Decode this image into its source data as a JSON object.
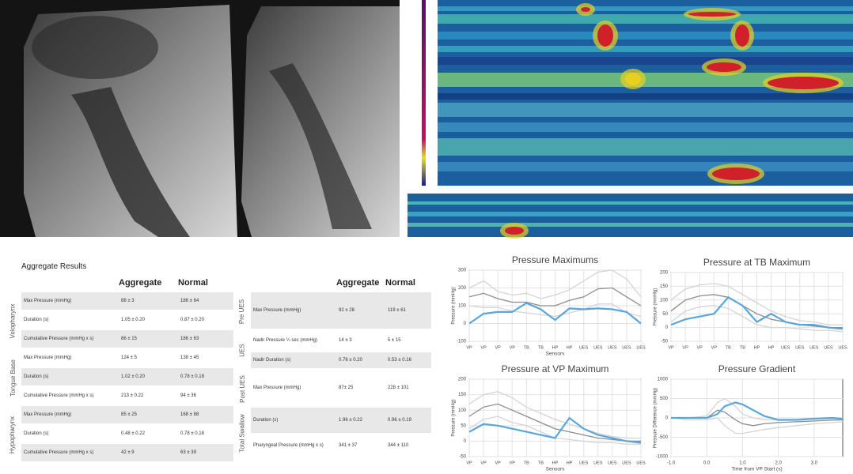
{
  "table": {
    "title": "Aggregate Results",
    "left_header": [
      "Aggregate",
      "Normal"
    ],
    "right_header": [
      "Aggregate",
      "Normal"
    ],
    "left": [
      {
        "group": "Velopharynx",
        "rows": [
          [
            "Max Pressure (mmHg)",
            "88 ± 3",
            "186 ± 64"
          ],
          [
            "Duration (s)",
            "1.05 ± 0.20",
            "0.87 ± 0.20"
          ],
          [
            "Cumulative Pressure (mmHg x s)",
            "86 ± 15",
            "186 ± 63"
          ]
        ]
      },
      {
        "group": "Tongue Base",
        "rows": [
          [
            "Max Pressure (mmHg)",
            "124 ± 5",
            "138 ± 45"
          ],
          [
            "Duration (s)",
            "1.02 ± 0.20",
            "0.78 ± 0.18"
          ],
          [
            "Cumulative Pressure (mmHg x s)",
            "213 ± 0.22",
            "94 ± 36"
          ]
        ]
      },
      {
        "group": "Hypopharynx",
        "rows": [
          [
            "Max Pressure (mmHg)",
            "85 ± 25",
            "168 ± 88"
          ],
          [
            "Duration (s)",
            "0.48 ± 0.22",
            "0.78 ± 0.18"
          ],
          [
            "Cumulative Pressure (mmHg x s)",
            "42 ± 9",
            "63 ± 39"
          ]
        ]
      }
    ],
    "right": [
      {
        "group": "Pre UES",
        "rows": [
          [
            "Max Pressure (mmHg)",
            "92 ± 28",
            "119 ± 61"
          ]
        ]
      },
      {
        "group": "UES",
        "rows": [
          [
            "Nadir Pressure ¼ sec (mmHg)",
            "14 ± 3",
            "5 ± 15"
          ],
          [
            "Nadir Duration (s)",
            "0.76 ± 0.20",
            "0.53 ± 0.16"
          ]
        ]
      },
      {
        "group": "Post UES",
        "rows": [
          [
            "Max Pressure (mmHg)",
            "87± 25",
            "228 ± 101"
          ]
        ]
      },
      {
        "group": "Total Swallow",
        "rows": [
          [
            "Duration (s)",
            "1.96 ± 0.22",
            "0.96 ± 0.19"
          ],
          [
            "Pharyngeal Pressure (mmHg x s)",
            "341 ± 37",
            "344 ± 110"
          ]
        ]
      }
    ]
  },
  "chart_data": [
    {
      "type": "line",
      "title": "Pressure Maximums",
      "y_label": "Pressure (mmHg)",
      "x_label": "Sensors",
      "categories": [
        "VP",
        "VP",
        "VP",
        "VP",
        "TB",
        "TB",
        "HP",
        "HP",
        "UES",
        "UES",
        "UES",
        "UES",
        "UES"
      ],
      "ylim": [
        -100,
        300
      ],
      "yticks": [
        -100,
        0,
        100,
        200,
        300
      ],
      "grid": true,
      "series": [
        {
          "color": "#d4d4d4",
          "values": [
            200,
            240,
            180,
            160,
            170,
            140,
            160,
            190,
            240,
            290,
            300,
            250,
            150
          ]
        },
        {
          "color": "#d4d4d4",
          "values": [
            100,
            90,
            90,
            70,
            60,
            50,
            40,
            60,
            80,
            110,
            110,
            60,
            40
          ]
        },
        {
          "color": "#8c8c8c",
          "values": [
            150,
            170,
            140,
            120,
            120,
            100,
            100,
            130,
            150,
            195,
            200,
            150,
            100
          ]
        },
        {
          "color": "#5aa6dc",
          "values": [
            0,
            55,
            65,
            65,
            115,
            80,
            20,
            85,
            80,
            85,
            80,
            65,
            0
          ]
        }
      ]
    },
    {
      "type": "line",
      "title": "Pressure at TB Maximum",
      "y_label": "Pressure (mmHg)",
      "categories": [
        "VP",
        "VP",
        "VP",
        "VP",
        "TB",
        "TB",
        "HP",
        "HP",
        "UES",
        "UES",
        "UES",
        "UES",
        "UES"
      ],
      "ylim": [
        -50,
        200
      ],
      "yticks": [
        -50,
        0,
        50,
        100,
        150,
        200
      ],
      "grid": true,
      "series": [
        {
          "color": "#d4d4d4",
          "values": [
            100,
            140,
            155,
            160,
            150,
            120,
            90,
            60,
            40,
            25,
            20,
            10,
            10
          ]
        },
        {
          "color": "#d4d4d4",
          "values": [
            20,
            60,
            75,
            80,
            70,
            40,
            10,
            0,
            0,
            -5,
            -10,
            -10,
            -15
          ]
        },
        {
          "color": "#8c8c8c",
          "values": [
            60,
            100,
            115,
            120,
            110,
            80,
            50,
            30,
            20,
            10,
            5,
            0,
            0
          ]
        },
        {
          "color": "#5aa6dc",
          "values": [
            10,
            30,
            40,
            50,
            110,
            80,
            20,
            50,
            20,
            10,
            10,
            0,
            -5
          ]
        }
      ]
    },
    {
      "type": "line",
      "title": "Pressure at VP Maximum",
      "y_label": "Pressure (mmHg)",
      "x_label": "Sensors",
      "categories": [
        "VP",
        "VP",
        "VP",
        "VP",
        "TB",
        "TB",
        "HP",
        "HP",
        "UES",
        "UES",
        "UES",
        "UES",
        "UES"
      ],
      "ylim": [
        -50,
        200
      ],
      "yticks": [
        -50,
        0,
        50,
        100,
        150,
        200
      ],
      "grid": true,
      "series": [
        {
          "color": "#d4d4d4",
          "values": [
            120,
            150,
            160,
            140,
            110,
            90,
            70,
            55,
            40,
            25,
            15,
            10,
            10
          ]
        },
        {
          "color": "#d4d4d4",
          "values": [
            40,
            70,
            80,
            60,
            50,
            30,
            10,
            5,
            0,
            -5,
            -5,
            -10,
            -10
          ]
        },
        {
          "color": "#8c8c8c",
          "values": [
            80,
            110,
            120,
            100,
            80,
            60,
            40,
            30,
            20,
            10,
            5,
            0,
            0
          ]
        },
        {
          "color": "#5aa6dc",
          "values": [
            30,
            55,
            50,
            40,
            30,
            20,
            10,
            75,
            40,
            20,
            10,
            0,
            -5
          ]
        }
      ]
    },
    {
      "type": "line",
      "title": "Pressure Gradient",
      "y_label": "Pressure Difference (mmHg)",
      "x_label": "Time from VP Start (s)",
      "x": [
        -1,
        -0.5,
        0,
        0.3,
        0.5,
        0.8,
        1.0,
        1.3,
        1.6,
        2.0,
        2.5,
        3.0,
        3.5,
        3.8
      ],
      "xlim": [
        -1,
        3.8
      ],
      "xticks": [
        {
          "value": -1,
          "label": "-1.0"
        },
        {
          "value": 0,
          "label": "0.0"
        },
        {
          "value": 1,
          "label": "1.0"
        },
        {
          "value": 2,
          "label": "2.0"
        },
        {
          "value": 3,
          "label": "3.0"
        }
      ],
      "ylim": [
        -1000,
        1000
      ],
      "yticks": [
        -1000,
        -500,
        0,
        500,
        1000
      ],
      "grid": true,
      "series": [
        {
          "color": "#d4d4d4",
          "values": [
            0,
            0,
            50,
            400,
            500,
            300,
            100,
            0,
            -50,
            -50,
            -40,
            -30,
            -20,
            -20
          ]
        },
        {
          "color": "#d4d4d4",
          "values": [
            0,
            -50,
            -50,
            0,
            -200,
            -400,
            -400,
            -350,
            -300,
            -250,
            -200,
            -150,
            -120,
            -100
          ]
        },
        {
          "color": "#8c8c8c",
          "values": [
            0,
            0,
            0,
            200,
            150,
            -50,
            -150,
            -200,
            -150,
            -120,
            -100,
            -80,
            -60,
            -50
          ]
        },
        {
          "color": "#5aa6dc",
          "values": [
            0,
            0,
            0,
            100,
            300,
            400,
            350,
            200,
            50,
            -50,
            -50,
            -20,
            0,
            -20
          ]
        }
      ]
    }
  ]
}
